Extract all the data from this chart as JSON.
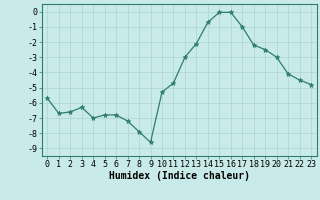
{
  "x": [
    0,
    1,
    2,
    3,
    4,
    5,
    6,
    7,
    8,
    9,
    10,
    11,
    12,
    13,
    14,
    15,
    16,
    17,
    18,
    19,
    20,
    21,
    22,
    23
  ],
  "y": [
    -5.7,
    -6.7,
    -6.6,
    -6.3,
    -7.0,
    -6.8,
    -6.8,
    -7.2,
    -7.9,
    -8.6,
    -5.3,
    -4.7,
    -3.0,
    -2.1,
    -0.7,
    -0.05,
    -0.05,
    -1.0,
    -2.2,
    -2.5,
    -3.0,
    -4.1,
    -4.5,
    -4.8
  ],
  "xlabel": "Humidex (Indice chaleur)",
  "xlim": [
    -0.5,
    23.5
  ],
  "ylim": [
    -9.5,
    0.5
  ],
  "yticks": [
    0,
    -1,
    -2,
    -3,
    -4,
    -5,
    -6,
    -7,
    -8,
    -9
  ],
  "xticks": [
    0,
    1,
    2,
    3,
    4,
    5,
    6,
    7,
    8,
    9,
    10,
    11,
    12,
    13,
    14,
    15,
    16,
    17,
    18,
    19,
    20,
    21,
    22,
    23
  ],
  "line_color": "#2e7d6e",
  "marker": "*",
  "bg_color": "#c8eae8",
  "grid_color": "#aed4d0",
  "marker_size": 3.5,
  "tick_fontsize": 6.0,
  "xlabel_fontsize": 7.0
}
